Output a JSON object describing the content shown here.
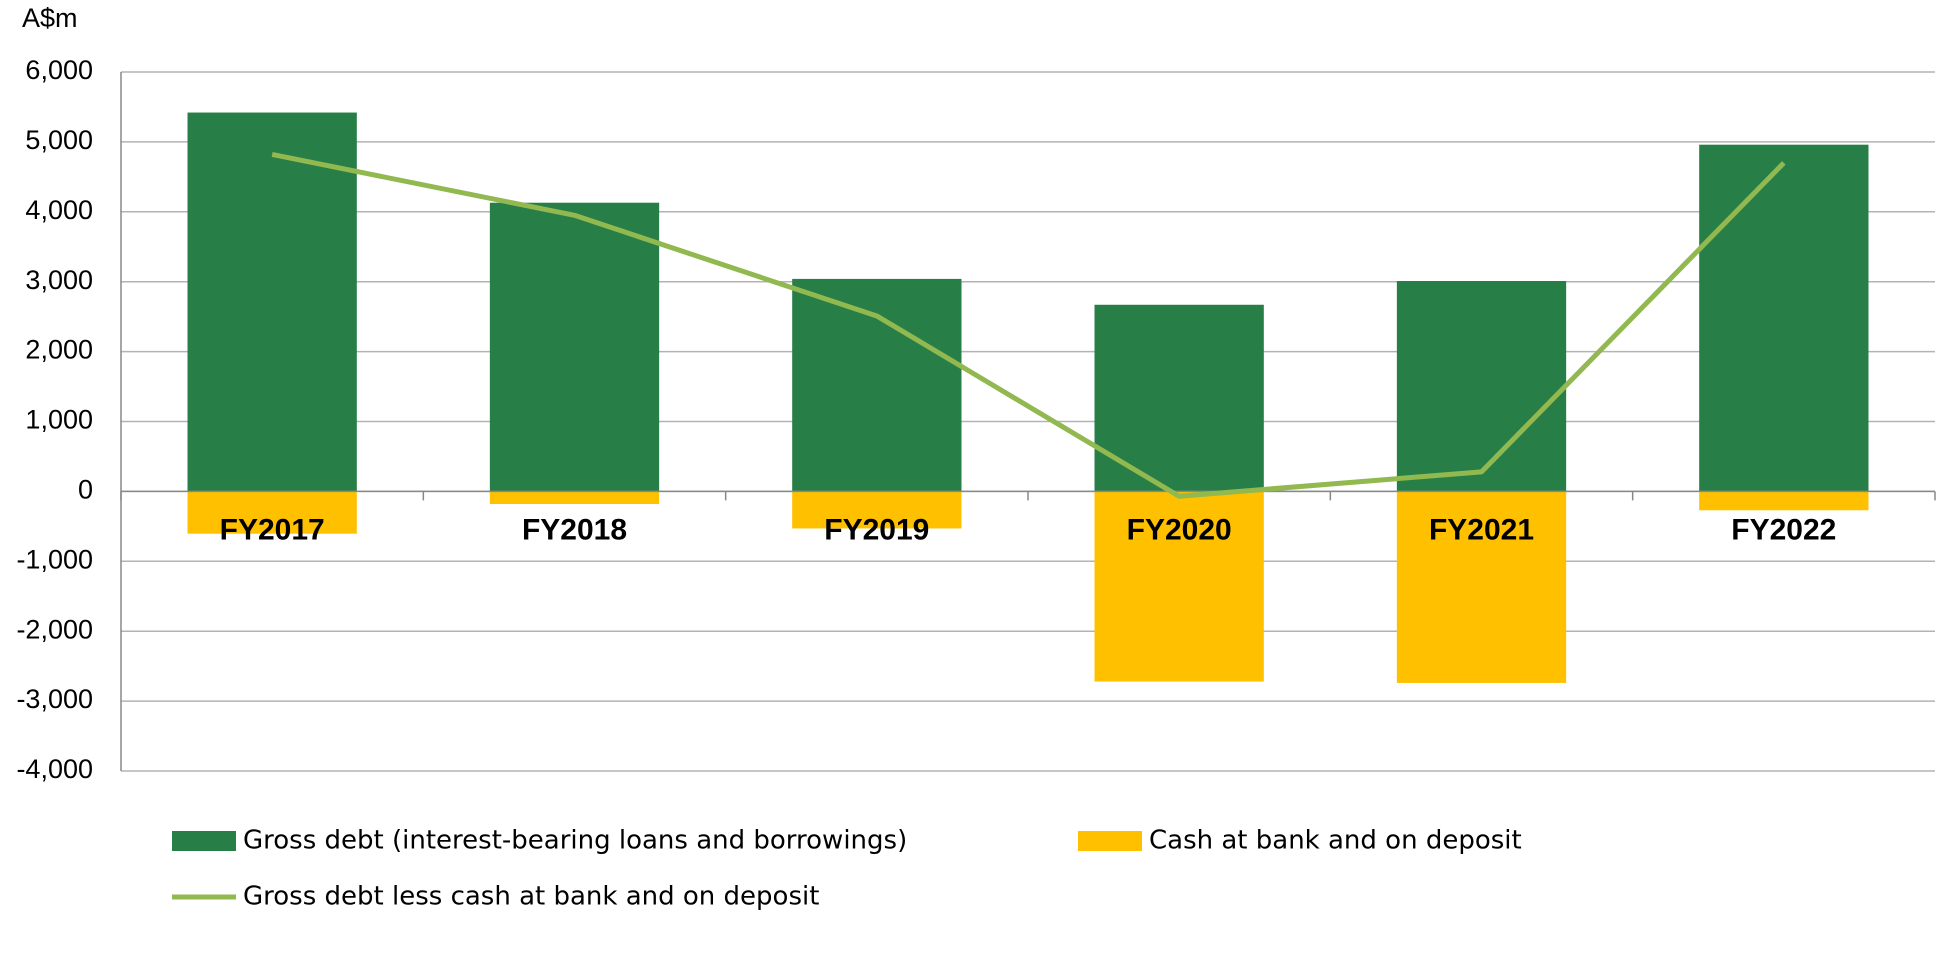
{
  "chart_data": {
    "type": "bar",
    "y_label": "A$m",
    "categories": [
      "FY2017",
      "FY2018",
      "FY2019",
      "FY2020",
      "FY2021",
      "FY2022"
    ],
    "series": [
      {
        "name": "Gross debt (interest-bearing loans and borrowings)",
        "color": "#277f47",
        "values": [
          5420,
          4130,
          3040,
          2670,
          3010,
          4960
        ]
      },
      {
        "name": "Cash at bank and on deposit",
        "color": "#ffc000",
        "values": [
          -605,
          -180,
          -530,
          -2720,
          -2740,
          -270
        ]
      },
      {
        "name": "Gross debt less cash at bank and on deposit",
        "color": "#92b850",
        "type": "line",
        "values": [
          4820,
          3950,
          2510,
          -70,
          280,
          4700
        ]
      }
    ],
    "ylim": [
      -4000,
      6000
    ],
    "yticks": [
      {
        "value": 6000,
        "label": "6,000"
      },
      {
        "value": 5000,
        "label": "5,000"
      },
      {
        "value": 4000,
        "label": "4,000"
      },
      {
        "value": 3000,
        "label": "3,000"
      },
      {
        "value": 2000,
        "label": "2,000"
      },
      {
        "value": 1000,
        "label": "1,000"
      },
      0,
      {
        "value": -1000,
        "label": "-1,000"
      },
      {
        "value": -2000,
        "label": "-2,000"
      },
      {
        "value": -3000,
        "label": "-3,000"
      },
      {
        "value": -4000,
        "label": "-4,000"
      }
    ],
    "grid": true
  }
}
